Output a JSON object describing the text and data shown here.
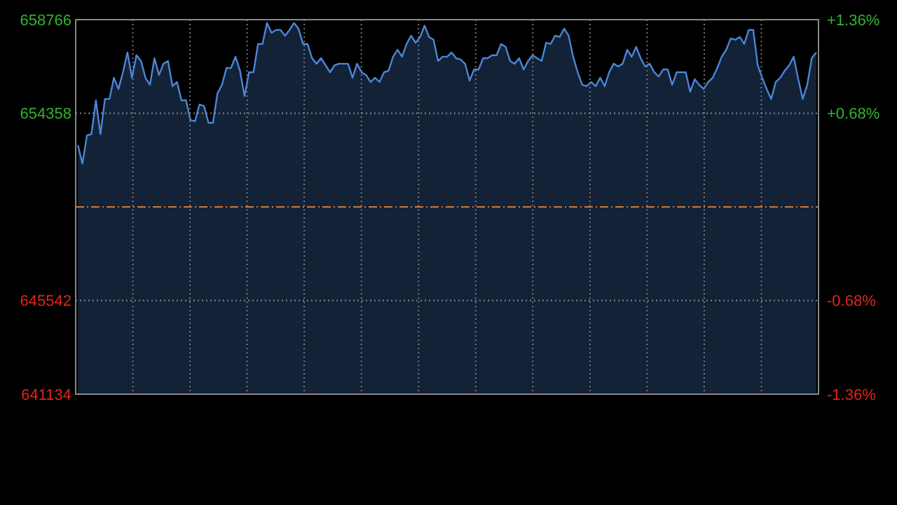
{
  "chart_data": {
    "type": "area",
    "categories": [
      null,
      null,
      null,
      null,
      null,
      null,
      null,
      null,
      null,
      null,
      null,
      null,
      null,
      null,
      null,
      null,
      null,
      null,
      null,
      null,
      null,
      null,
      null,
      null,
      null,
      null,
      null,
      null,
      null,
      null,
      null,
      null,
      null,
      null,
      null,
      null,
      null,
      null,
      null,
      null,
      null,
      null,
      null,
      null,
      null,
      null,
      null,
      null,
      null,
      null,
      null,
      null,
      null,
      null,
      null,
      null,
      null,
      null,
      null,
      null,
      null,
      null,
      null,
      null,
      null,
      null,
      null,
      null,
      null,
      null,
      null,
      null,
      null,
      null,
      null,
      null,
      null,
      null,
      null,
      null,
      null,
      null,
      null,
      null,
      null,
      null,
      null,
      null,
      null,
      null,
      null,
      null,
      null,
      null,
      null,
      null,
      null,
      null,
      null,
      null,
      null,
      null,
      null,
      null,
      null,
      null,
      null,
      null,
      null,
      null,
      null,
      null,
      null,
      null,
      null,
      null,
      null,
      null,
      null,
      null,
      null,
      null,
      null,
      null,
      null,
      null,
      null,
      null,
      null,
      null,
      null,
      null,
      null,
      null,
      null,
      null,
      null,
      null,
      null,
      null,
      null,
      null,
      null,
      null,
      null,
      null,
      null,
      null,
      null,
      null,
      null,
      null,
      null,
      null,
      null,
      null,
      null,
      null,
      null,
      null,
      null,
      null,
      null,
      null,
      null
    ],
    "series": [
      {
        "color": "#4a86d8",
        "values": [
          652850,
          651990,
          653310,
          653380,
          654970,
          653380,
          655030,
          655030,
          656030,
          655500,
          656290,
          657220,
          656030,
          657090,
          656820,
          656030,
          655700,
          656950,
          656160,
          656690,
          656820,
          655630,
          655830,
          654970,
          654970,
          654040,
          653980,
          654770,
          654700,
          653910,
          653910,
          655300,
          655700,
          656490,
          656490,
          657020,
          656360,
          655170,
          656290,
          656290,
          657620,
          657620,
          658610,
          658150,
          658280,
          658280,
          658010,
          658280,
          658610,
          658340,
          657620,
          657620,
          656950,
          656690,
          656950,
          656620,
          656290,
          656620,
          656690,
          656690,
          656690,
          656030,
          656690,
          656290,
          656160,
          655830,
          656030,
          655830,
          656290,
          656360,
          657020,
          657350,
          657020,
          657620,
          658010,
          657680,
          657950,
          658480,
          657950,
          657820,
          656820,
          657020,
          657020,
          657220,
          656950,
          656890,
          656690,
          655900,
          656420,
          656420,
          656950,
          656950,
          657090,
          657090,
          657620,
          657480,
          656820,
          656690,
          656950,
          656420,
          656820,
          657090,
          656950,
          656820,
          657680,
          657620,
          658010,
          657950,
          658340,
          658010,
          657020,
          656290,
          655700,
          655630,
          655830,
          655630,
          656030,
          655630,
          656290,
          656690,
          656560,
          656690,
          657350,
          657020,
          657480,
          656950,
          656560,
          656690,
          656290,
          656090,
          656420,
          656420,
          655700,
          656290,
          656290,
          656290,
          655370,
          655960,
          655700,
          655500,
          655830,
          656030,
          656490,
          657020,
          657350,
          657880,
          657820,
          657950,
          657620,
          658280,
          658280,
          656620,
          656030,
          655500,
          655030,
          655830,
          656030,
          656360,
          656620,
          657020,
          655960,
          655030,
          655700,
          656950,
          657220
        ]
      }
    ],
    "ylim": [
      641134,
      658766
    ],
    "yticks": [
      641134,
      645542,
      654358,
      658766
    ],
    "y2lim": [
      -1.36,
      1.36
    ],
    "y2ticks": [
      {
        "value": -1.36,
        "label": "-1.36%"
      },
      {
        "value": -0.68,
        "label": "-0.68%"
      },
      {
        "value": 0.68,
        "label": "+0.68%"
      },
      {
        "value": 1.36,
        "label": "+1.36%"
      }
    ],
    "ref_lines": [
      {
        "axis": "y",
        "value": 649950,
        "color": "#c87a3c",
        "line_style": "dashed"
      }
    ],
    "grid": true
  }
}
